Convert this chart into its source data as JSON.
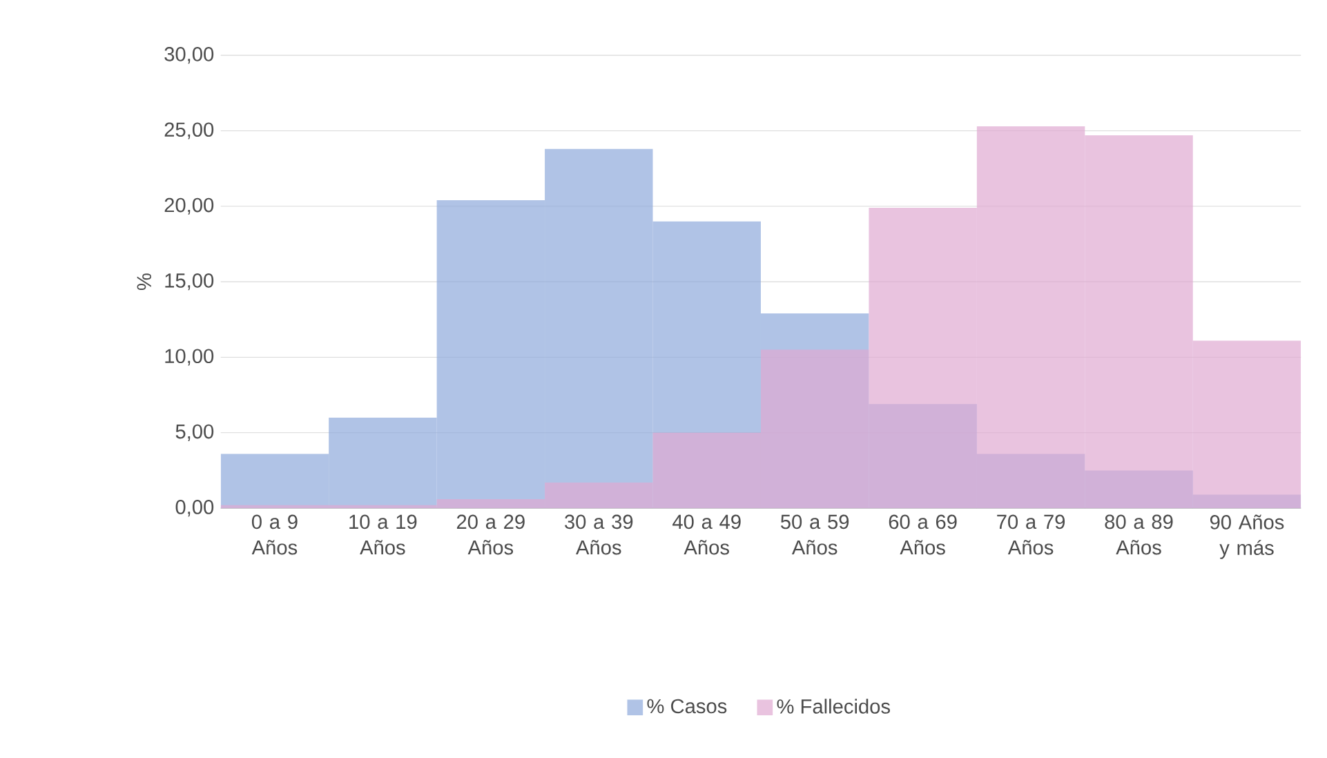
{
  "chart_data": {
    "type": "bar",
    "ylabel": "%",
    "categories": [
      "0 a 9 Años",
      "10 a 19 Años",
      "20 a 29 Años",
      "30 a 39 Años",
      "40 a 49 Años",
      "50 a 59 Años",
      "60 a 69 Años",
      "70 a 79 Años",
      "80 a 89 Años",
      "90 Años y más"
    ],
    "series": [
      {
        "name": "% Casos",
        "color": "#8eaadc",
        "values": [
          3.6,
          6.0,
          20.4,
          23.8,
          19.0,
          12.9,
          6.9,
          3.6,
          2.5,
          0.9
        ]
      },
      {
        "name": "% Fallecidos",
        "color": "#dfa9d2",
        "values": [
          0.2,
          0.2,
          0.6,
          1.7,
          5.0,
          10.5,
          19.9,
          25.3,
          24.7,
          11.1
        ]
      }
    ],
    "ylim": [
      0,
      30
    ],
    "yticks": [
      {
        "value": 0,
        "label": "0,00"
      },
      {
        "value": 5,
        "label": "5,00"
      },
      {
        "value": 10,
        "label": "10,00"
      },
      {
        "value": 15,
        "label": "15,00"
      },
      {
        "value": 20,
        "label": "20,00"
      },
      {
        "value": 25,
        "label": "25,00"
      },
      {
        "value": 30,
        "label": "30,00"
      }
    ],
    "grid": "y",
    "legend": "bottom"
  }
}
